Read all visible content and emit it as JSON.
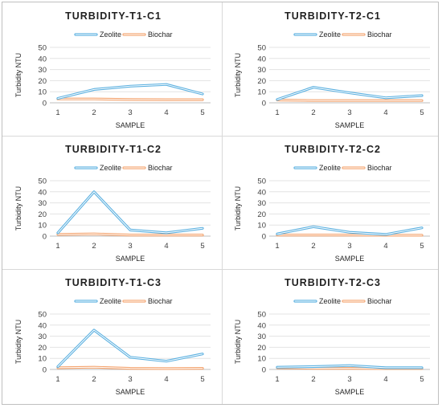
{
  "chart_data": [
    {
      "type": "line",
      "title": "TURBIDITY-T1-C1",
      "xlabel": "SAMPLE",
      "ylabel": "Turbidity NTU",
      "categories": [
        "1",
        "2",
        "3",
        "4",
        "5"
      ],
      "ylim": [
        0,
        50
      ],
      "yticks": [
        "0",
        "10",
        "20",
        "30",
        "40",
        "50"
      ],
      "grid": true,
      "legend_position": "top-center",
      "series": [
        {
          "name": "Zeolite",
          "color": "#5bb0e0",
          "values": [
            4,
            12,
            15,
            16.5,
            8
          ]
        },
        {
          "name": "Biochar",
          "color": "#f4a46f",
          "values": [
            3.5,
            3.5,
            3,
            2.8,
            2.8
          ]
        }
      ]
    },
    {
      "type": "line",
      "title": "TURBIDITY-T2-C1",
      "xlabel": "SAMPLE",
      "ylabel": "Turbidity NTU",
      "categories": [
        "1",
        "2",
        "3",
        "4",
        "5"
      ],
      "ylim": [
        0,
        50
      ],
      "yticks": [
        "0",
        "10",
        "20",
        "30",
        "40",
        "50"
      ],
      "grid": true,
      "legend_position": "top-center",
      "series": [
        {
          "name": "Zeolite",
          "color": "#5bb0e0",
          "values": [
            3,
            14,
            9,
            4.5,
            6.5
          ]
        },
        {
          "name": "Biochar",
          "color": "#f4a46f",
          "values": [
            2.5,
            2,
            2,
            2,
            2
          ]
        }
      ]
    },
    {
      "type": "line",
      "title": "TURBIDITY-T1-C2",
      "xlabel": "SAMPLE",
      "ylabel": "Turbidity NTU",
      "categories": [
        "1",
        "2",
        "3",
        "4",
        "5"
      ],
      "ylim": [
        0,
        50
      ],
      "yticks": [
        "0",
        "10",
        "20",
        "30",
        "40",
        "50"
      ],
      "grid": true,
      "legend_position": "top-center",
      "series": [
        {
          "name": "Zeolite",
          "color": "#5bb0e0",
          "values": [
            3,
            40,
            5.5,
            3,
            7
          ]
        },
        {
          "name": "Biochar",
          "color": "#f4a46f",
          "values": [
            1.5,
            2,
            1,
            1,
            1
          ]
        }
      ]
    },
    {
      "type": "line",
      "title": "TURBIDITY-T2-C2",
      "xlabel": "SAMPLE",
      "ylabel": "Turbidity NTU",
      "categories": [
        "1",
        "2",
        "3",
        "4",
        "5"
      ],
      "ylim": [
        0,
        50
      ],
      "yticks": [
        "0",
        "10",
        "20",
        "30",
        "40",
        "50"
      ],
      "grid": true,
      "legend_position": "top-center",
      "series": [
        {
          "name": "Zeolite",
          "color": "#5bb0e0",
          "values": [
            2,
            8.5,
            3.5,
            1.5,
            7.5
          ]
        },
        {
          "name": "Biochar",
          "color": "#f4a46f",
          "values": [
            1,
            1,
            1,
            0.8,
            0.8
          ]
        }
      ]
    },
    {
      "type": "line",
      "title": "TURBIDITY-T1-C3",
      "xlabel": "SAMPLE",
      "ylabel": "Turbidity NTU",
      "categories": [
        "1",
        "2",
        "3",
        "4",
        "5"
      ],
      "ylim": [
        0,
        50
      ],
      "yticks": [
        "0",
        "10",
        "20",
        "30",
        "40",
        "50"
      ],
      "grid": true,
      "legend_position": "top-center",
      "series": [
        {
          "name": "Zeolite",
          "color": "#5bb0e0",
          "values": [
            2.5,
            35.5,
            11,
            7.5,
            14
          ]
        },
        {
          "name": "Biochar",
          "color": "#f4a46f",
          "values": [
            1.5,
            2,
            1,
            0.8,
            1
          ]
        }
      ]
    },
    {
      "type": "line",
      "title": "TURBIDITY-T2-C3",
      "xlabel": "SAMPLE",
      "ylabel": "Turbidity NTU",
      "categories": [
        "1",
        "2",
        "3",
        "4",
        "5"
      ],
      "ylim": [
        0,
        50
      ],
      "yticks": [
        "0",
        "10",
        "20",
        "30",
        "40",
        "50"
      ],
      "grid": true,
      "legend_position": "top-center",
      "series": [
        {
          "name": "Zeolite",
          "color": "#5bb0e0",
          "values": [
            2,
            2.5,
            3.5,
            1.5,
            1.5
          ]
        },
        {
          "name": "Biochar",
          "color": "#f4a46f",
          "values": [
            1.5,
            1,
            1,
            0.8,
            0.8
          ]
        }
      ]
    }
  ]
}
